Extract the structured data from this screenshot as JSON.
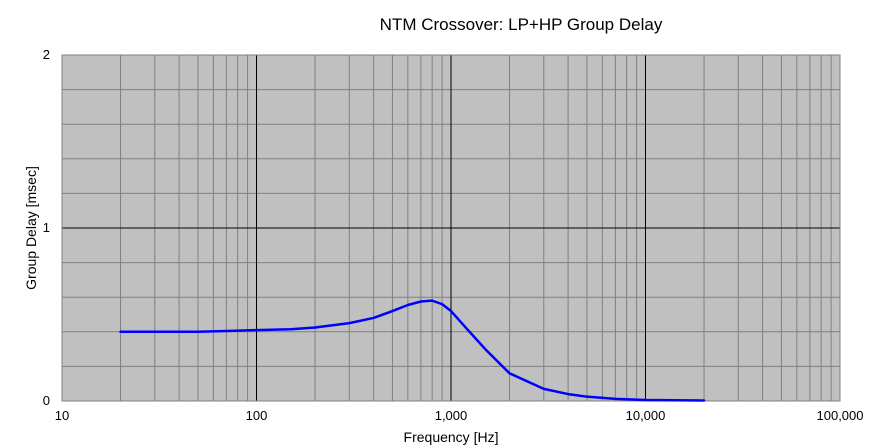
{
  "chart_data": {
    "type": "line",
    "title": "NTM Crossover: LP+HP Group Delay",
    "xlabel": "Frequency [Hz]",
    "ylabel": "Group Delay [msec]",
    "x_scale": "log",
    "xlim": [
      10,
      100000
    ],
    "ylim": [
      0,
      2
    ],
    "x_ticks": [
      10,
      100,
      1000,
      10000,
      100000
    ],
    "x_tick_labels": [
      "10",
      "100",
      "1,000",
      "10,000",
      "100,000"
    ],
    "y_ticks": [
      0,
      1,
      2
    ],
    "y_tick_labels": [
      "0",
      "1",
      "2"
    ],
    "grid": true,
    "legend": "none",
    "colors": {
      "plot_area": "#C0C0C0",
      "line": "#0000FF",
      "major_grid": "#000000",
      "minor_grid": "#808080"
    },
    "series": [
      {
        "x": [
          20,
          30,
          50,
          70,
          100,
          150,
          200,
          300,
          400,
          500,
          600,
          700,
          800,
          900,
          1000,
          1200,
          1500,
          2000,
          3000,
          4000,
          5000,
          7000,
          10000,
          20000
        ],
        "y": [
          0.4,
          0.4,
          0.4,
          0.405,
          0.41,
          0.415,
          0.425,
          0.45,
          0.48,
          0.52,
          0.555,
          0.575,
          0.58,
          0.56,
          0.52,
          0.42,
          0.3,
          0.16,
          0.07,
          0.04,
          0.025,
          0.012,
          0.006,
          0.003
        ]
      }
    ]
  }
}
